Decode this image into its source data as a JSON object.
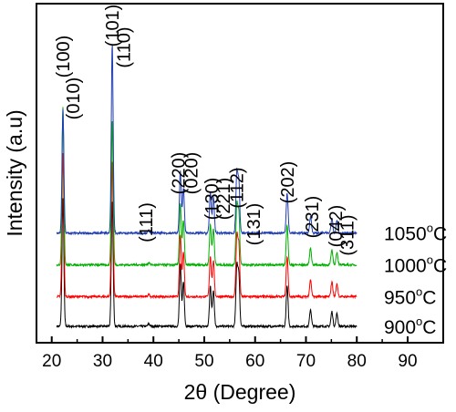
{
  "chart_data": {
    "type": "line",
    "xlabel": "2θ (Degree)",
    "ylabel": "Intensity (a.u)",
    "xlim": [
      17,
      97
    ],
    "x_ticks": [
      "20",
      "30",
      "40",
      "50",
      "60",
      "70",
      "80",
      "90"
    ],
    "x_tick_values": [
      20,
      30,
      40,
      50,
      60,
      70,
      80,
      90
    ],
    "series": [
      {
        "name": "900°C",
        "temp_value": "900",
        "unit": "C",
        "color": "#000000",
        "baseline": 0.0,
        "peaks": [
          [
            22.2,
            3.0
          ],
          [
            31.9,
            2.95
          ],
          [
            39.1,
            0.06
          ],
          [
            45.3,
            1.45
          ],
          [
            45.9,
            1.05
          ],
          [
            51.2,
            0.95
          ],
          [
            51.8,
            0.85
          ],
          [
            56.4,
            1.4
          ],
          [
            56.8,
            1.2
          ],
          [
            66.3,
            0.95
          ],
          [
            70.9,
            0.4
          ],
          [
            75.1,
            0.35
          ],
          [
            76.1,
            0.3
          ]
        ]
      },
      {
        "name": "950°C",
        "temp_value": "950",
        "unit": "C",
        "color": "#ff0000",
        "baseline": 0.7,
        "peaks": [
          [
            22.2,
            3.4
          ],
          [
            31.9,
            3.2
          ],
          [
            39.1,
            0.06
          ],
          [
            45.3,
            1.45
          ],
          [
            45.9,
            1.05
          ],
          [
            51.2,
            0.95
          ],
          [
            51.8,
            0.85
          ],
          [
            56.4,
            1.4
          ],
          [
            56.8,
            1.2
          ],
          [
            66.3,
            0.95
          ],
          [
            70.9,
            0.4
          ],
          [
            75.1,
            0.35
          ],
          [
            76.1,
            0.3
          ]
        ]
      },
      {
        "name": "1000°C",
        "temp_value": "1000",
        "unit": "C",
        "color": "#00b000",
        "baseline": 1.45,
        "peaks": [
          [
            22.2,
            3.7
          ],
          [
            31.9,
            3.4
          ],
          [
            39.1,
            0.06
          ],
          [
            45.3,
            1.45
          ],
          [
            45.9,
            1.05
          ],
          [
            51.2,
            0.95
          ],
          [
            51.8,
            0.85
          ],
          [
            56.4,
            1.4
          ],
          [
            56.8,
            1.2
          ],
          [
            66.3,
            0.95
          ],
          [
            70.9,
            0.4
          ],
          [
            75.1,
            0.35
          ],
          [
            76.1,
            0.3
          ]
        ]
      },
      {
        "name": "1050°C",
        "temp_value": "1050",
        "unit": "C",
        "color": "#1e3cb4",
        "baseline": 2.2,
        "peaks": [
          [
            22.2,
            2.9
          ],
          [
            31.9,
            4.45
          ],
          [
            39.1,
            0.06
          ],
          [
            45.3,
            1.45
          ],
          [
            45.9,
            1.05
          ],
          [
            51.2,
            0.95
          ],
          [
            51.8,
            0.85
          ],
          [
            56.4,
            1.4
          ],
          [
            56.8,
            1.2
          ],
          [
            66.3,
            0.95
          ],
          [
            70.9,
            0.4
          ],
          [
            75.1,
            0.35
          ],
          [
            76.1,
            0.3
          ]
        ]
      }
    ],
    "peak_labels": [
      {
        "text": "(100)",
        "x": 22.2
      },
      {
        "text": "(010)",
        "x": 24.2
      },
      {
        "text": "(101)",
        "x": 31.9
      },
      {
        "text": "(110)",
        "x": 34.1
      },
      {
        "text": "(111)",
        "x": 38.5
      },
      {
        "text": "(220)",
        "x": 44.9
      },
      {
        "text": "(020)",
        "x": 47.4
      },
      {
        "text": "(130)",
        "x": 51.4
      },
      {
        "text": "(221)",
        "x": 53.8
      },
      {
        "text": "(112)",
        "x": 56.4
      },
      {
        "text": "(131)",
        "x": 59.7
      },
      {
        "text": "(202)",
        "x": 66.3
      },
      {
        "text": "(231)",
        "x": 71.2
      },
      {
        "text": "(042)",
        "x": 75.8
      },
      {
        "text": "(311)",
        "x": 78.1
      }
    ]
  }
}
